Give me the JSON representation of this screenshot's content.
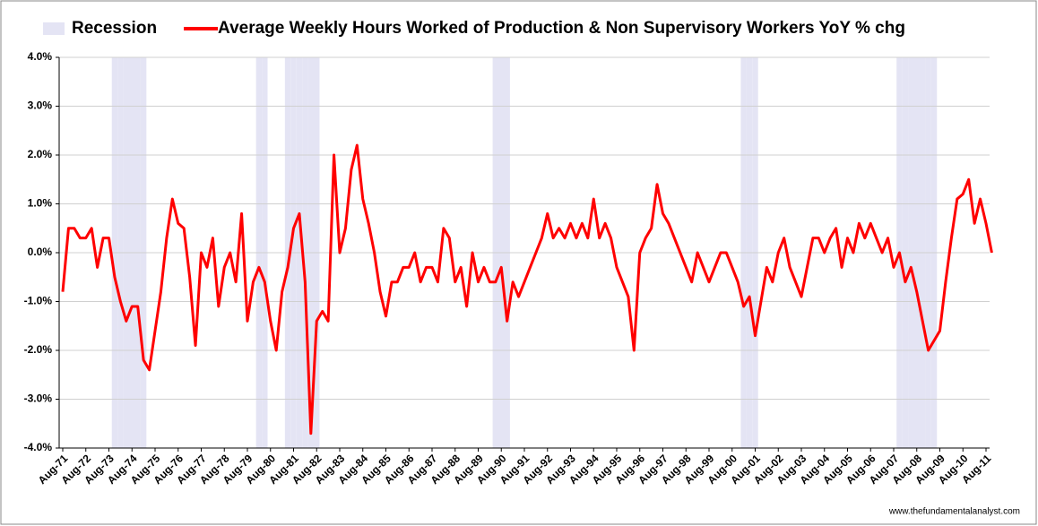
{
  "chart_data": {
    "type": "line",
    "source": "www.thefundamentalanalyst.com",
    "categories": [
      "Aug-71",
      null,
      null,
      null,
      "Aug-72",
      null,
      null,
      null,
      "Aug-73",
      null,
      null,
      null,
      "Aug-74",
      null,
      null,
      null,
      "Aug-75",
      null,
      null,
      null,
      "Aug-76",
      null,
      null,
      null,
      "Aug-77",
      null,
      null,
      null,
      "Aug-78",
      null,
      null,
      null,
      "Aug-79",
      null,
      null,
      null,
      "Aug-80",
      null,
      null,
      null,
      "Aug-81",
      null,
      null,
      null,
      "Aug-82",
      null,
      null,
      null,
      "Aug-83",
      null,
      null,
      null,
      "Aug-84",
      null,
      null,
      null,
      "Aug-85",
      null,
      null,
      null,
      "Aug-86",
      null,
      null,
      null,
      "Aug-87",
      null,
      null,
      null,
      "Aug-88",
      null,
      null,
      null,
      "Aug-89",
      null,
      null,
      null,
      "Aug-90",
      null,
      null,
      null,
      "Aug-91",
      null,
      null,
      null,
      "Aug-92",
      null,
      null,
      null,
      "Aug-93",
      null,
      null,
      null,
      "Aug-94",
      null,
      null,
      null,
      "Aug-95",
      null,
      null,
      null,
      "Aug-96",
      null,
      null,
      null,
      "Aug-97",
      null,
      null,
      null,
      "Aug-98",
      null,
      null,
      null,
      "Aug-99",
      null,
      null,
      null,
      "Aug-00",
      null,
      null,
      null,
      "Aug-01",
      null,
      null,
      null,
      "Aug-02",
      null,
      null,
      null,
      "Aug-03",
      null,
      null,
      null,
      "Aug-04",
      null,
      null,
      null,
      "Aug-05",
      null,
      null,
      null,
      "Aug-06",
      null,
      null,
      null,
      "Aug-07",
      null,
      null,
      null,
      "Aug-08",
      null,
      null,
      null,
      "Aug-09",
      null,
      null,
      null,
      "Aug-10",
      null,
      null,
      null,
      "Aug-11",
      null
    ],
    "series": [
      {
        "name": "Recession",
        "type": "bar",
        "color": "#e4e4f4",
        "values": [
          null,
          null,
          null,
          null,
          null,
          null,
          null,
          null,
          null,
          4,
          4,
          4,
          4,
          4,
          4,
          null,
          null,
          null,
          null,
          null,
          null,
          null,
          null,
          null,
          null,
          null,
          null,
          null,
          null,
          null,
          null,
          null,
          null,
          null,
          4,
          4,
          null,
          null,
          null,
          4,
          4,
          4,
          4,
          4,
          4,
          null,
          null,
          null,
          null,
          null,
          null,
          null,
          null,
          null,
          null,
          null,
          null,
          null,
          null,
          null,
          null,
          null,
          null,
          null,
          null,
          null,
          null,
          null,
          null,
          null,
          null,
          null,
          null,
          null,
          null,
          4,
          4,
          4,
          null,
          null,
          null,
          null,
          null,
          null,
          null,
          null,
          null,
          null,
          null,
          null,
          null,
          null,
          null,
          null,
          null,
          null,
          null,
          null,
          null,
          null,
          null,
          null,
          null,
          null,
          null,
          null,
          null,
          null,
          null,
          null,
          null,
          null,
          null,
          null,
          null,
          null,
          null,
          null,
          4,
          4,
          4,
          null,
          null,
          null,
          null,
          null,
          null,
          null,
          null,
          null,
          null,
          null,
          null,
          null,
          null,
          null,
          null,
          null,
          null,
          null,
          null,
          null,
          null,
          null,
          null,
          4,
          4,
          4,
          4,
          4,
          4,
          4,
          null,
          null,
          null,
          null,
          null,
          null,
          null,
          null,
          null,
          null
        ]
      },
      {
        "name": "Average Weekly Hours Worked of Production & Non Supervisory Workers YoY % chg",
        "type": "line",
        "color": "#ff0000",
        "values": [
          -0.8,
          0.5,
          0.5,
          0.3,
          0.3,
          0.5,
          -0.3,
          0.3,
          0.3,
          -0.5,
          -1.0,
          -1.4,
          -1.1,
          -1.1,
          -2.2,
          -2.4,
          -1.6,
          -0.8,
          0.3,
          1.1,
          0.6,
          0.5,
          -0.5,
          -1.9,
          0.0,
          -0.3,
          0.3,
          -1.1,
          -0.3,
          0.0,
          -0.6,
          0.8,
          -1.4,
          -0.6,
          -0.3,
          -0.6,
          -1.4,
          -2.0,
          -0.8,
          -0.3,
          0.5,
          0.8,
          -0.6,
          -3.7,
          -1.4,
          -1.2,
          -1.4,
          2.0,
          0.0,
          0.5,
          1.7,
          2.2,
          1.1,
          0.6,
          0.0,
          -0.8,
          -1.3,
          -0.6,
          -0.6,
          -0.3,
          -0.3,
          0.0,
          -0.6,
          -0.3,
          -0.3,
          -0.6,
          0.5,
          0.3,
          -0.6,
          -0.3,
          -1.1,
          0.0,
          -0.6,
          -0.3,
          -0.6,
          -0.6,
          -0.3,
          -1.4,
          -0.6,
          -0.9,
          -0.6,
          -0.3,
          0.0,
          0.3,
          0.8,
          0.3,
          0.5,
          0.3,
          0.6,
          0.3,
          0.6,
          0.3,
          1.1,
          0.3,
          0.6,
          0.3,
          -0.3,
          -0.6,
          -0.9,
          -2.0,
          0.0,
          0.3,
          0.5,
          1.4,
          0.8,
          0.6,
          0.3,
          0.0,
          -0.3,
          -0.6,
          0.0,
          -0.3,
          -0.6,
          -0.3,
          0.0,
          0.0,
          -0.3,
          -0.6,
          -1.1,
          -0.9,
          -1.7,
          -1.0,
          -0.3,
          -0.6,
          0.0,
          0.3,
          -0.3,
          -0.6,
          -0.9,
          -0.3,
          0.3,
          0.3,
          0.0,
          0.3,
          0.5,
          -0.3,
          0.3,
          0.0,
          0.6,
          0.3,
          0.6,
          0.3,
          0.0,
          0.3,
          -0.3,
          0.0,
          -0.6,
          -0.3,
          -0.8,
          -1.4,
          -2.0,
          -1.8,
          -1.6,
          -0.6,
          0.3,
          1.1,
          1.2,
          1.5,
          0.6,
          1.1,
          0.6,
          0.0
        ]
      }
    ],
    "ylim": [
      -4,
      4
    ],
    "yticks": [
      {
        "value": -4,
        "label": "-4.0%"
      },
      {
        "value": -3,
        "label": "-3.0%"
      },
      {
        "value": -2,
        "label": "-2.0%"
      },
      {
        "value": -1,
        "label": "-1.0%"
      },
      {
        "value": 0,
        "label": "0.0%"
      },
      {
        "value": 1,
        "label": "1.0%"
      },
      {
        "value": 2,
        "label": "2.0%"
      },
      {
        "value": 3,
        "label": "3.0%"
      },
      {
        "value": 4,
        "label": "4.0%"
      }
    ],
    "grid": true,
    "legend": "top"
  }
}
